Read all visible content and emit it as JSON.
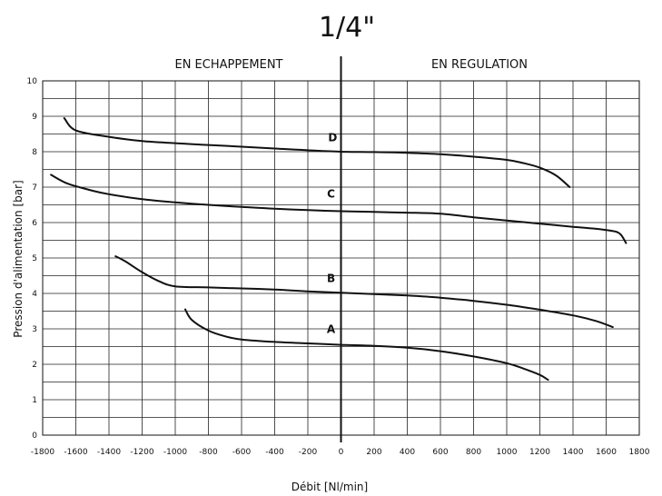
{
  "chart_data": {
    "type": "line",
    "title": "1/4\"",
    "region_left_label": "EN ECHAPPEMENT",
    "region_right_label": "EN REGULATION",
    "xlabel": "Débit [Nl/min]",
    "ylabel": "Pression d'alimentation [bar]",
    "xlim": [
      -1800,
      1800
    ],
    "ylim": [
      0,
      10
    ],
    "x_ticks": [
      -1800,
      -1600,
      -1400,
      -1200,
      -1000,
      -800,
      -600,
      -400,
      -200,
      0,
      200,
      400,
      600,
      800,
      1000,
      1200,
      1400,
      1600,
      1800
    ],
    "y_ticks": [
      0,
      1,
      2,
      3,
      4,
      5,
      6,
      7,
      8,
      9,
      10
    ],
    "grid": true,
    "series": [
      {
        "name": "D",
        "points": [
          [
            -1670,
            8.95
          ],
          [
            -1600,
            8.6
          ],
          [
            -1400,
            8.42
          ],
          [
            -1200,
            8.3
          ],
          [
            -1000,
            8.24
          ],
          [
            -800,
            8.19
          ],
          [
            -600,
            8.14
          ],
          [
            -400,
            8.09
          ],
          [
            -200,
            8.04
          ],
          [
            0,
            8.0
          ],
          [
            200,
            7.99
          ],
          [
            400,
            7.97
          ],
          [
            600,
            7.93
          ],
          [
            800,
            7.86
          ],
          [
            1000,
            7.77
          ],
          [
            1100,
            7.68
          ],
          [
            1200,
            7.55
          ],
          [
            1300,
            7.32
          ],
          [
            1380,
            7.0
          ]
        ]
      },
      {
        "name": "C",
        "points": [
          [
            -1750,
            7.35
          ],
          [
            -1650,
            7.1
          ],
          [
            -1500,
            6.9
          ],
          [
            -1400,
            6.8
          ],
          [
            -1200,
            6.66
          ],
          [
            -1000,
            6.57
          ],
          [
            -800,
            6.5
          ],
          [
            -600,
            6.44
          ],
          [
            -400,
            6.39
          ],
          [
            -200,
            6.35
          ],
          [
            0,
            6.32
          ],
          [
            200,
            6.3
          ],
          [
            400,
            6.28
          ],
          [
            600,
            6.25
          ],
          [
            800,
            6.15
          ],
          [
            1000,
            6.06
          ],
          [
            1200,
            5.97
          ],
          [
            1400,
            5.88
          ],
          [
            1500,
            5.84
          ],
          [
            1600,
            5.79
          ],
          [
            1660,
            5.74
          ],
          [
            1690,
            5.65
          ],
          [
            1720,
            5.42
          ]
        ]
      },
      {
        "name": "B",
        "points": [
          [
            -1360,
            5.05
          ],
          [
            -1300,
            4.9
          ],
          [
            -1200,
            4.6
          ],
          [
            -1100,
            4.35
          ],
          [
            -1000,
            4.2
          ],
          [
            -800,
            4.17
          ],
          [
            -600,
            4.14
          ],
          [
            -400,
            4.11
          ],
          [
            -200,
            4.06
          ],
          [
            0,
            4.02
          ],
          [
            200,
            3.98
          ],
          [
            400,
            3.94
          ],
          [
            600,
            3.88
          ],
          [
            800,
            3.79
          ],
          [
            1000,
            3.68
          ],
          [
            1200,
            3.54
          ],
          [
            1400,
            3.38
          ],
          [
            1540,
            3.22
          ],
          [
            1640,
            3.05
          ]
        ]
      },
      {
        "name": "A",
        "points": [
          [
            -940,
            3.55
          ],
          [
            -900,
            3.25
          ],
          [
            -800,
            2.95
          ],
          [
            -700,
            2.79
          ],
          [
            -600,
            2.7
          ],
          [
            -400,
            2.63
          ],
          [
            -200,
            2.59
          ],
          [
            0,
            2.55
          ],
          [
            200,
            2.52
          ],
          [
            400,
            2.47
          ],
          [
            600,
            2.37
          ],
          [
            800,
            2.22
          ],
          [
            1000,
            2.03
          ],
          [
            1100,
            1.88
          ],
          [
            1200,
            1.7
          ],
          [
            1250,
            1.56
          ]
        ]
      }
    ],
    "curve_labels": [
      {
        "text": "D",
        "x": -50,
        "y": 8.3
      },
      {
        "text": "C",
        "x": -60,
        "y": 6.7
      },
      {
        "text": "B",
        "x": -60,
        "y": 4.32
      },
      {
        "text": "A",
        "x": -60,
        "y": 2.88
      }
    ]
  }
}
